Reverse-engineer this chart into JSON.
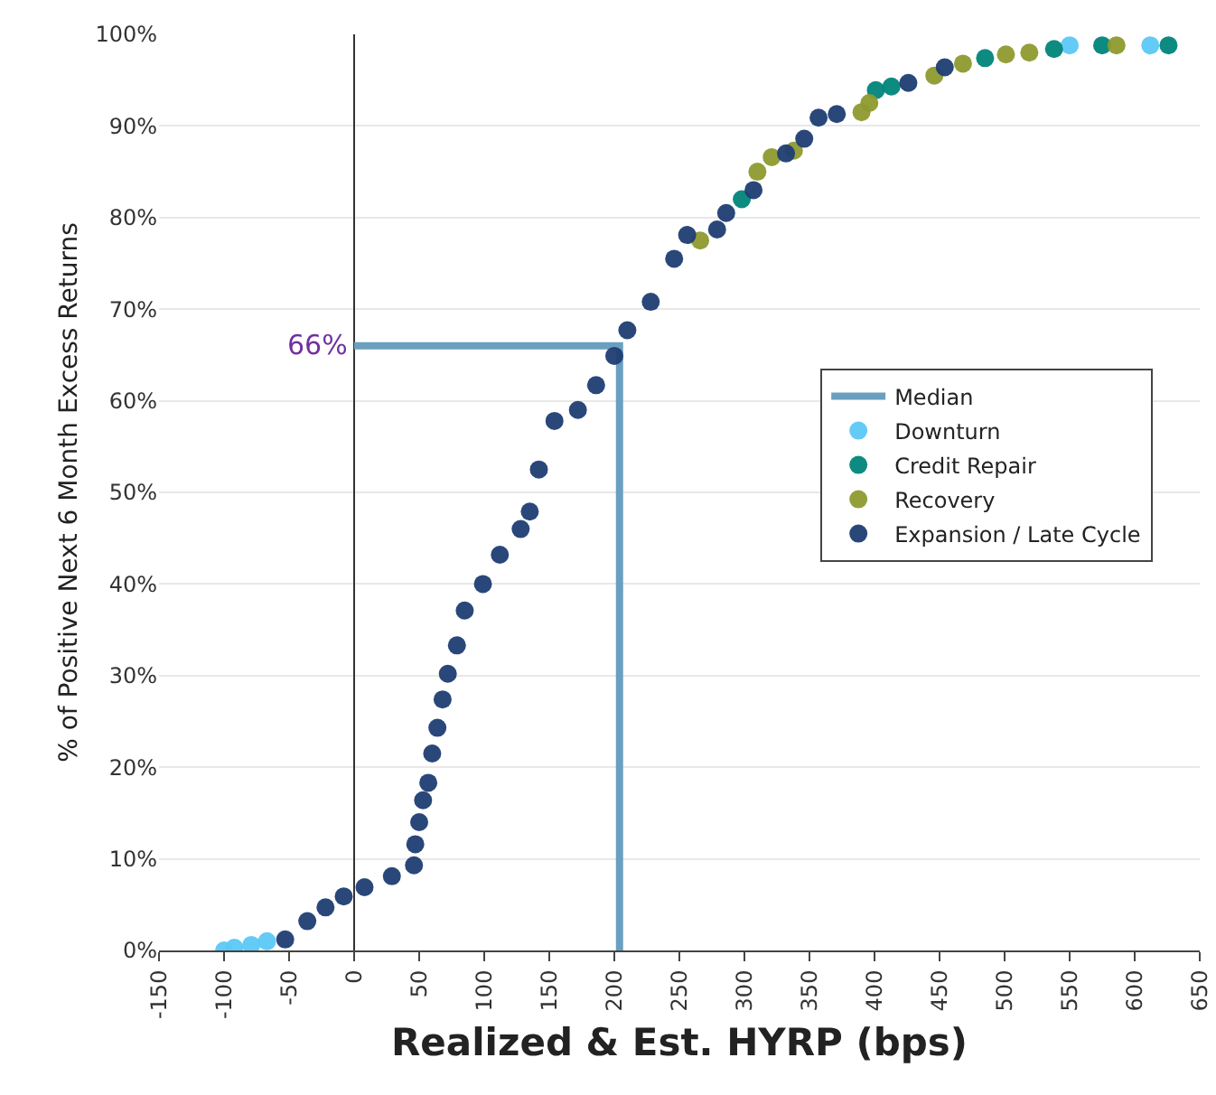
{
  "chart_data": {
    "type": "scatter",
    "xlabel": "Realized & Est. HYRP (bps)",
    "ylabel": "% of Positive Next 6 Month Excess Returns",
    "xlim": [
      -150,
      650
    ],
    "xticks": [
      -150,
      -100,
      -50,
      0,
      50,
      100,
      150,
      200,
      250,
      300,
      350,
      400,
      450,
      500,
      550,
      600,
      650
    ],
    "ylim": [
      0,
      100
    ],
    "yticks": [
      {
        "value": 0,
        "label": "0%"
      },
      {
        "value": 10,
        "label": "10%"
      },
      {
        "value": 20,
        "label": "20%"
      },
      {
        "value": 30,
        "label": "30%"
      },
      {
        "value": 40,
        "label": "40%"
      },
      {
        "value": 50,
        "label": "50%"
      },
      {
        "value": 60,
        "label": "60%"
      },
      {
        "value": 70,
        "label": "70%"
      },
      {
        "value": 80,
        "label": "80%"
      },
      {
        "value": 90,
        "label": "90%"
      },
      {
        "value": 100,
        "label": "100%"
      }
    ],
    "grid": "y",
    "legend": "right",
    "marker": "circle",
    "annotations": [
      {
        "text": "66%",
        "x": 0,
        "y": 66
      }
    ],
    "series": [
      {
        "name": "Median",
        "type": "line",
        "marker": "none",
        "color": "#6a9fbf",
        "x": [
          0,
          204,
          204
        ],
        "values": [
          66,
          66,
          0
        ]
      },
      {
        "name": "Downturn",
        "color": "#5bc8f5",
        "x": [
          -100,
          -92,
          -79,
          -67,
          550,
          612
        ],
        "values": [
          0,
          0.3,
          0.6,
          1.0,
          98.8,
          98.8
        ]
      },
      {
        "name": "Credit Repair",
        "color": "#00857a",
        "x": [
          298,
          401,
          413,
          485,
          538,
          575,
          626
        ],
        "values": [
          82,
          93.9,
          94.3,
          97.4,
          98.4,
          98.8,
          98.8
        ]
      },
      {
        "name": "Recovery",
        "color": "#8e9a2f",
        "x": [
          266,
          310,
          321,
          338,
          390,
          396,
          446,
          468,
          501,
          519,
          586
        ],
        "values": [
          77.5,
          85,
          86.6,
          87.3,
          91.5,
          92.5,
          95.5,
          96.8,
          97.8,
          98,
          98.8
        ]
      },
      {
        "name": "Expansion / Late Cycle",
        "color": "#1f3d73",
        "x": [
          -53,
          -36,
          -22,
          -8,
          8,
          29,
          46,
          47,
          50,
          53,
          57,
          60,
          64,
          68,
          72,
          79,
          85,
          99,
          112,
          128,
          135,
          142,
          154,
          172,
          186,
          200,
          210,
          228,
          246,
          256,
          279,
          286,
          307,
          332,
          346,
          357,
          371,
          426,
          454
        ],
        "values": [
          1.2,
          3.2,
          4.7,
          5.9,
          6.9,
          8.1,
          9.3,
          11.6,
          14,
          16.4,
          18.3,
          21.5,
          24.3,
          27.4,
          30.2,
          33.3,
          37.1,
          40,
          43.2,
          46,
          47.9,
          52.5,
          57.8,
          59,
          61.7,
          64.9,
          67.7,
          70.8,
          75.5,
          78.1,
          78.7,
          80.5,
          83,
          87,
          88.6,
          90.9,
          91.3,
          94.7,
          96.4
        ]
      }
    ]
  }
}
